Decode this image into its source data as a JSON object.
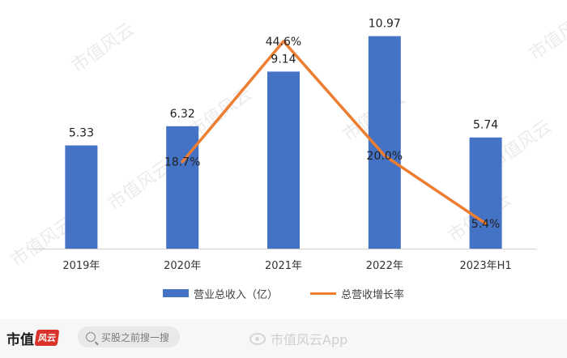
{
  "chart_data": {
    "type": "bar",
    "categories": [
      "2019年",
      "2020年",
      "2021年",
      "2022年",
      "2023年H1"
    ],
    "series": [
      {
        "name": "营业总收入（亿）",
        "type": "bar",
        "color": "#4472c4",
        "values": [
          5.33,
          6.32,
          9.14,
          10.97,
          5.74
        ],
        "labels": [
          "5.33",
          "6.32",
          "9.14",
          "10.97",
          "5.74"
        ]
      },
      {
        "name": "总营收增长率",
        "type": "line",
        "color": "#ed7d31",
        "values": [
          null,
          18.7,
          44.6,
          20.0,
          5.4
        ],
        "labels": [
          "",
          "18.7%",
          "44.6%",
          "20.0%",
          "5.4%"
        ],
        "unit": "%"
      }
    ],
    "ylim": [
      0,
      12
    ],
    "y2lim": [
      0,
      50
    ],
    "grid": false,
    "legend_position": "bottom"
  },
  "footer": {
    "brand": "市值",
    "brand_seal": "风云",
    "search_placeholder": "买股之前搜一搜",
    "weibo_text": "市值风云App"
  },
  "icons": {
    "search": "search-icon",
    "weibo": "weibo-icon"
  }
}
